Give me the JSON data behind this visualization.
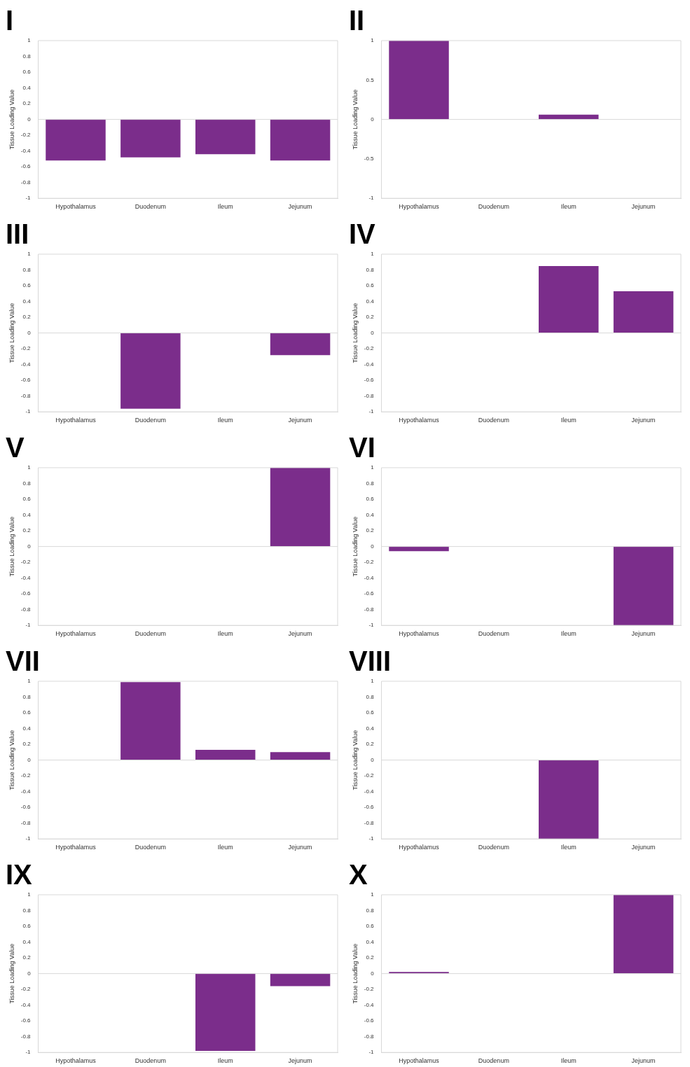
{
  "chart_data": [
    {
      "type": "bar",
      "title": "I",
      "ylabel": "Tissue Loading Value",
      "categories": [
        "Hypothalamus",
        "Duodenum",
        "Ileum",
        "Jejunum"
      ],
      "values": [
        -0.52,
        -0.48,
        -0.44,
        -0.52
      ],
      "color": "#7b2d8b",
      "ylim": [
        -1,
        1
      ],
      "yticks": [
        -1,
        -0.8,
        -0.6,
        -0.4,
        -0.2,
        0,
        0.2,
        0.4,
        0.6,
        0.8,
        1
      ],
      "ref_lines": [
        {
          "axis": "y",
          "value": 0,
          "color": "#d9d9d9"
        }
      ],
      "grid": false,
      "legend": false
    },
    {
      "type": "bar",
      "title": "II",
      "ylabel": "Tissue Loading Value",
      "categories": [
        "Hypothalamus",
        "Duodenum",
        "Ileum",
        "Jejunum"
      ],
      "values": [
        1,
        0,
        0.06,
        0
      ],
      "color": "#7b2d8b",
      "ylim": [
        -1,
        1
      ],
      "yticks": [
        -1,
        -0.5,
        0,
        0.5,
        1
      ],
      "ref_lines": [
        {
          "axis": "y",
          "value": 0,
          "color": "#d9d9d9"
        }
      ],
      "grid": false,
      "legend": false
    },
    {
      "type": "bar",
      "title": "III",
      "ylabel": "Tissue Loading Value",
      "categories": [
        "Hypothalamus",
        "Duodenum",
        "Ileum",
        "Jejunum"
      ],
      "values": [
        0,
        -0.96,
        0,
        -0.28
      ],
      "color": "#7b2d8b",
      "ylim": [
        -1,
        1
      ],
      "yticks": [
        -1,
        -0.8,
        -0.6,
        -0.4,
        -0.2,
        0,
        0.2,
        0.4,
        0.6,
        0.8,
        1
      ],
      "ref_lines": [
        {
          "axis": "y",
          "value": 0,
          "color": "#d9d9d9"
        }
      ],
      "grid": false,
      "legend": false
    },
    {
      "type": "bar",
      "title": "IV",
      "ylabel": "Tissue Loading Value",
      "categories": [
        "Hypothalamus",
        "Duodenum",
        "Ileum",
        "Jejunum"
      ],
      "values": [
        0,
        0,
        0.85,
        0.53
      ],
      "color": "#7b2d8b",
      "ylim": [
        -1,
        1
      ],
      "yticks": [
        -1,
        -0.8,
        -0.6,
        -0.4,
        -0.2,
        0,
        0.2,
        0.4,
        0.6,
        0.8,
        1
      ],
      "ref_lines": [
        {
          "axis": "y",
          "value": 0,
          "color": "#d9d9d9"
        }
      ],
      "grid": false,
      "legend": false
    },
    {
      "type": "bar",
      "title": "V",
      "ylabel": "Tissue Loading Value",
      "categories": [
        "Hypothalamus",
        "Duodenum",
        "Ileum",
        "Jejunum"
      ],
      "values": [
        0,
        0,
        0,
        1
      ],
      "color": "#7b2d8b",
      "ylim": [
        -1,
        1
      ],
      "yticks": [
        -1,
        -0.8,
        -0.6,
        -0.4,
        -0.2,
        0,
        0.2,
        0.4,
        0.6,
        0.8,
        1
      ],
      "ref_lines": [
        {
          "axis": "y",
          "value": 0,
          "color": "#d9d9d9"
        }
      ],
      "grid": false,
      "legend": false
    },
    {
      "type": "bar",
      "title": "VI",
      "ylabel": "Tissue Loading Value",
      "categories": [
        "Hypothalamus",
        "Duodenum",
        "Ileum",
        "Jejunum"
      ],
      "values": [
        -0.06,
        0,
        0,
        -1
      ],
      "color": "#7b2d8b",
      "ylim": [
        -1,
        1
      ],
      "yticks": [
        -1,
        -0.8,
        -0.6,
        -0.4,
        -0.2,
        0,
        0.2,
        0.4,
        0.6,
        0.8,
        1
      ],
      "ref_lines": [
        {
          "axis": "y",
          "value": 0,
          "color": "#d9d9d9"
        }
      ],
      "grid": false,
      "legend": false
    },
    {
      "type": "bar",
      "title": "VII",
      "ylabel": "Tissue Loading Value",
      "categories": [
        "Hypothalamus",
        "Duodenum",
        "Ileum",
        "Jejunum"
      ],
      "values": [
        0,
        0.99,
        0.13,
        0.1
      ],
      "color": "#7b2d8b",
      "ylim": [
        -1,
        1
      ],
      "yticks": [
        -1,
        -0.8,
        -0.6,
        -0.4,
        -0.2,
        0,
        0.2,
        0.4,
        0.6,
        0.8,
        1
      ],
      "ref_lines": [
        {
          "axis": "y",
          "value": 0,
          "color": "#d9d9d9"
        }
      ],
      "grid": false,
      "legend": false
    },
    {
      "type": "bar",
      "title": "VIII",
      "ylabel": "Tissue Loading Value",
      "categories": [
        "Hypothalamus",
        "Duodenum",
        "Ileum",
        "Jejunum"
      ],
      "values": [
        0,
        0,
        -1,
        0
      ],
      "color": "#7b2d8b",
      "ylim": [
        -1,
        1
      ],
      "yticks": [
        -1,
        -0.8,
        -0.6,
        -0.4,
        -0.2,
        0,
        0.2,
        0.4,
        0.6,
        0.8,
        1
      ],
      "ref_lines": [
        {
          "axis": "y",
          "value": 0,
          "color": "#d9d9d9"
        }
      ],
      "grid": false,
      "legend": false
    },
    {
      "type": "bar",
      "title": "IX",
      "ylabel": "Tissue Loading Value",
      "categories": [
        "Hypothalamus",
        "Duodenum",
        "Ileum",
        "Jejunum"
      ],
      "values": [
        0,
        0,
        -0.98,
        -0.16
      ],
      "color": "#7b2d8b",
      "ylim": [
        -1,
        1
      ],
      "yticks": [
        -1,
        -0.8,
        -0.6,
        -0.4,
        -0.2,
        0,
        0.2,
        0.4,
        0.6,
        0.8,
        1
      ],
      "ref_lines": [
        {
          "axis": "y",
          "value": 0,
          "color": "#d9d9d9"
        }
      ],
      "grid": false,
      "legend": false
    },
    {
      "type": "bar",
      "title": "X",
      "ylabel": "Tissue Loading Value",
      "categories": [
        "Hypothalamus",
        "Duodenum",
        "Ileum",
        "Jejunum"
      ],
      "values": [
        0.02,
        0,
        0,
        1
      ],
      "color": "#7b2d8b",
      "ylim": [
        -1,
        1
      ],
      "yticks": [
        -1,
        -0.8,
        -0.6,
        -0.4,
        -0.2,
        0,
        0.2,
        0.4,
        0.6,
        0.8,
        1
      ],
      "ref_lines": [
        {
          "axis": "y",
          "value": 0,
          "color": "#d9d9d9"
        }
      ],
      "grid": false,
      "legend": false
    }
  ]
}
